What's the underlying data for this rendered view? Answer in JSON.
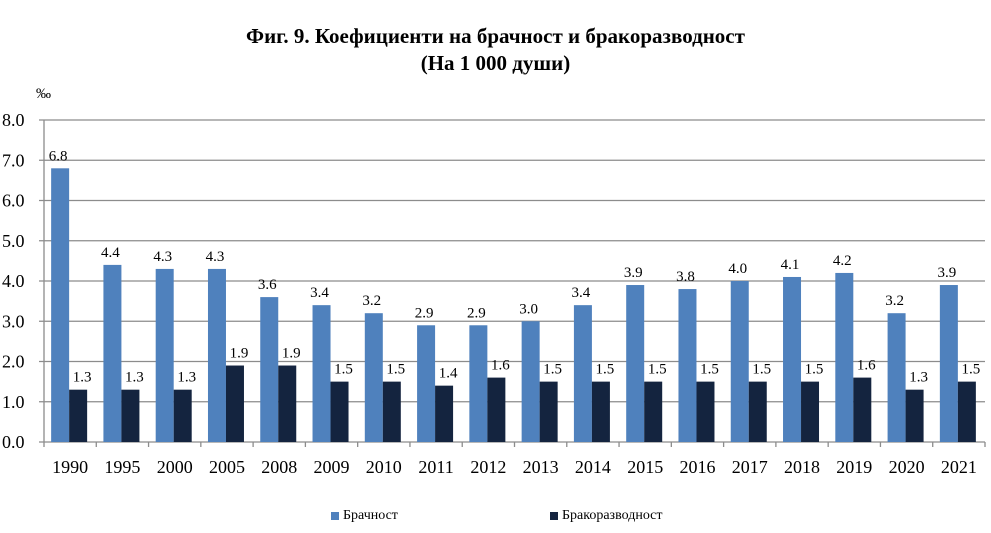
{
  "header": {
    "title": "Фиг. 9. Коефициенти на брачност и бракоразводност",
    "subtitle": "(На 1 000 души)",
    "unit": "‰"
  },
  "legend": {
    "items": [
      {
        "label": "Брачност",
        "color": "#4f81bd"
      },
      {
        "label": "Бракоразводност",
        "color": "#14243f"
      }
    ]
  },
  "chart_data": {
    "type": "bar",
    "title": "Фиг. 9. Коефициенти на брачност и бракоразводност (На 1 000 души)",
    "xlabel": "",
    "ylabel": "‰",
    "ylim": [
      0,
      8
    ],
    "yticks": [
      "0.0",
      "1.0",
      "2.0",
      "3.0",
      "4.0",
      "5.0",
      "6.0",
      "7.0",
      "8.0"
    ],
    "grid": true,
    "legend_position": "bottom",
    "categories": [
      "1990",
      "1995",
      "2000",
      "2005",
      "2008",
      "2009",
      "2010",
      "2011",
      "2012",
      "2013",
      "2014",
      "2015",
      "2016",
      "2017",
      "2018",
      "2019",
      "2020",
      "2021"
    ],
    "series": [
      {
        "name": "Брачност",
        "color": "#4f81bd",
        "values": [
          6.8,
          4.4,
          4.3,
          4.3,
          3.6,
          3.4,
          3.2,
          2.9,
          2.9,
          3.0,
          3.4,
          3.9,
          3.8,
          4.0,
          4.1,
          4.2,
          3.2,
          3.9
        ]
      },
      {
        "name": "Бракоразводност",
        "color": "#14243f",
        "values": [
          1.3,
          1.3,
          1.3,
          1.9,
          1.9,
          1.5,
          1.5,
          1.4,
          1.6,
          1.5,
          1.5,
          1.5,
          1.5,
          1.5,
          1.5,
          1.6,
          1.3,
          1.5
        ]
      }
    ]
  }
}
